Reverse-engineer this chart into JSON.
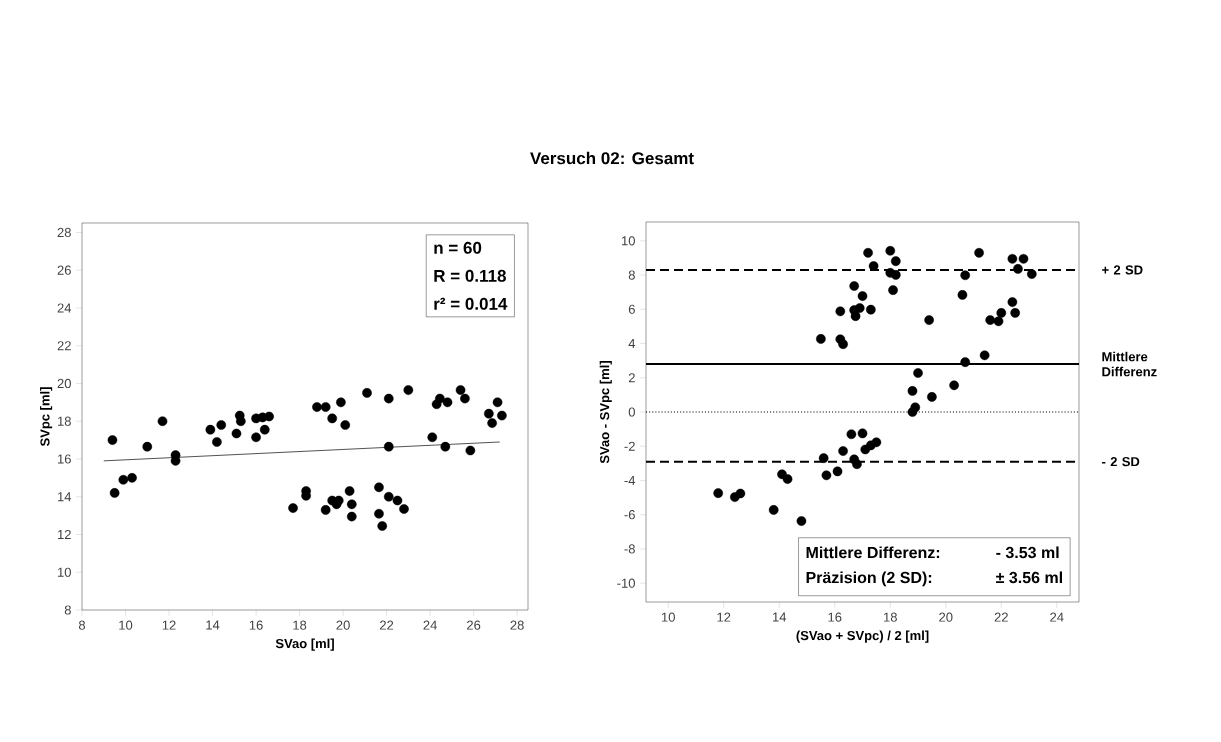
{
  "chart_data": [
    {
      "type": "scatter",
      "title": "Versuch 02:  Gesamt",
      "xlabel": "SVao [ml]",
      "ylabel": "SVpc [ml]",
      "xlim": [
        8,
        28.5
      ],
      "ylim": [
        8,
        28.5
      ],
      "xticks": [
        8,
        10,
        12,
        14,
        16,
        18,
        20,
        22,
        24,
        26,
        28
      ],
      "yticks": [
        8,
        10,
        12,
        14,
        16,
        18,
        20,
        22,
        24,
        26,
        28
      ],
      "annotations": [
        "n = 60",
        "R = 0.118",
        "r² = 0.014"
      ],
      "series": [
        {
          "color": "#000000",
          "marker": "circle",
          "x": [
            9.4,
            9.5,
            9.9,
            10.3,
            11.0,
            11.7,
            12.3,
            12.3,
            13.9,
            14.2,
            14.4,
            15.1,
            15.25,
            15.3,
            16.0,
            16.0,
            16.3,
            16.4,
            16.6,
            17.7,
            18.3,
            18.3,
            18.8,
            19.2,
            19.2,
            19.5,
            19.5,
            19.7,
            19.8,
            19.9,
            20.1,
            20.3,
            20.4,
            20.4,
            21.1,
            21.65,
            21.65,
            21.8,
            22.1,
            22.1,
            22.1,
            22.5,
            22.8,
            23.0,
            24.1,
            24.3,
            24.45,
            24.8,
            24.7,
            25.4,
            25.6,
            25.85,
            26.7,
            26.85,
            27.1,
            27.3
          ],
          "values": [
            17.0,
            14.2,
            14.9,
            15.0,
            16.65,
            18.0,
            16.2,
            15.9,
            17.55,
            16.9,
            17.8,
            17.35,
            18.3,
            18.0,
            17.15,
            18.15,
            18.2,
            17.55,
            18.25,
            13.4,
            14.3,
            14.05,
            18.75,
            18.75,
            13.3,
            18.15,
            13.8,
            13.6,
            13.8,
            19.0,
            17.8,
            14.3,
            13.6,
            12.95,
            19.5,
            14.5,
            13.1,
            12.45,
            16.65,
            19.2,
            14.0,
            13.8,
            13.35,
            19.65,
            17.15,
            18.9,
            19.2,
            19.0,
            16.65,
            19.65,
            19.2,
            16.45,
            18.4,
            17.9,
            19.0,
            18.3
          ]
        },
        {
          "type": "line",
          "color": "#404040",
          "line_style": "solid",
          "x": [
            9.0,
            27.2
          ],
          "values": [
            15.9,
            16.9
          ]
        }
      ]
    },
    {
      "type": "scatter",
      "xlabel": "(SVao + SVpc) / 2 [ml]",
      "ylabel": "SVao - SVpc [ml]",
      "xlim": [
        9.2,
        24.8
      ],
      "ylim": [
        -11.1,
        11.1
      ],
      "xticks": [
        10,
        12,
        14,
        16,
        18,
        20,
        22,
        24
      ],
      "yticks": [
        -10,
        -8,
        -6,
        -4,
        -2,
        0,
        2,
        4,
        6,
        8,
        10
      ],
      "annotations": [
        "Mittlere Differenz:",
        "-  3.53 ml",
        "Präzision (2 SD):",
        "± 3.56 ml"
      ],
      "ref_lines": [
        {
          "axis": "y",
          "value": 8.3,
          "label": "+ 2 SD",
          "color": "#000000",
          "line_style": "dashed"
        },
        {
          "axis": "y",
          "value": 2.8,
          "label": "Mittlere Differenz",
          "color": "#000000",
          "line_style": "solid"
        },
        {
          "axis": "y",
          "value": 0,
          "label": null,
          "color": "#000000",
          "line_style": "dotted"
        },
        {
          "axis": "y",
          "value": -2.9,
          "label": "- 2 SD",
          "color": "#000000",
          "line_style": "dashed"
        }
      ],
      "series": [
        {
          "color": "#000000",
          "marker": "circle",
          "x": [
            11.8,
            12.4,
            12.6,
            13.8,
            14.1,
            14.3,
            14.8,
            15.5,
            15.6,
            15.7,
            16.1,
            16.2,
            16.2,
            16.3,
            16.3,
            16.6,
            16.7,
            16.7,
            16.7,
            16.75,
            16.8,
            16.9,
            17.0,
            17.0,
            17.1,
            17.2,
            17.3,
            17.3,
            17.4,
            17.5,
            18.0,
            18.0,
            18.1,
            18.2,
            18.2,
            18.8,
            18.9,
            18.8,
            19.0,
            19.4,
            19.5,
            20.3,
            20.6,
            20.7,
            20.7,
            21.2,
            21.4,
            21.6,
            21.9,
            22.0,
            22.4,
            22.4,
            22.5,
            22.6,
            22.8,
            23.1
          ],
          "values": [
            -4.74,
            -4.97,
            -4.76,
            -5.72,
            -3.64,
            -3.92,
            -6.37,
            4.27,
            -2.7,
            -3.7,
            -3.47,
            5.88,
            4.25,
            3.96,
            -2.28,
            -1.3,
            -2.77,
            7.36,
            5.95,
            5.6,
            -3.05,
            6.07,
            6.77,
            -1.25,
            -2.19,
            9.3,
            5.98,
            -1.95,
            8.53,
            -1.77,
            9.42,
            8.13,
            7.12,
            8.01,
            8.81,
            0.0,
            0.27,
            1.23,
            2.28,
            5.37,
            0.88,
            1.56,
            6.84,
            2.91,
            7.99,
            9.3,
            3.31,
            5.37,
            5.3,
            5.79,
            6.42,
            8.95,
            5.79,
            8.36,
            8.95,
            8.06
          ]
        }
      ]
    }
  ]
}
